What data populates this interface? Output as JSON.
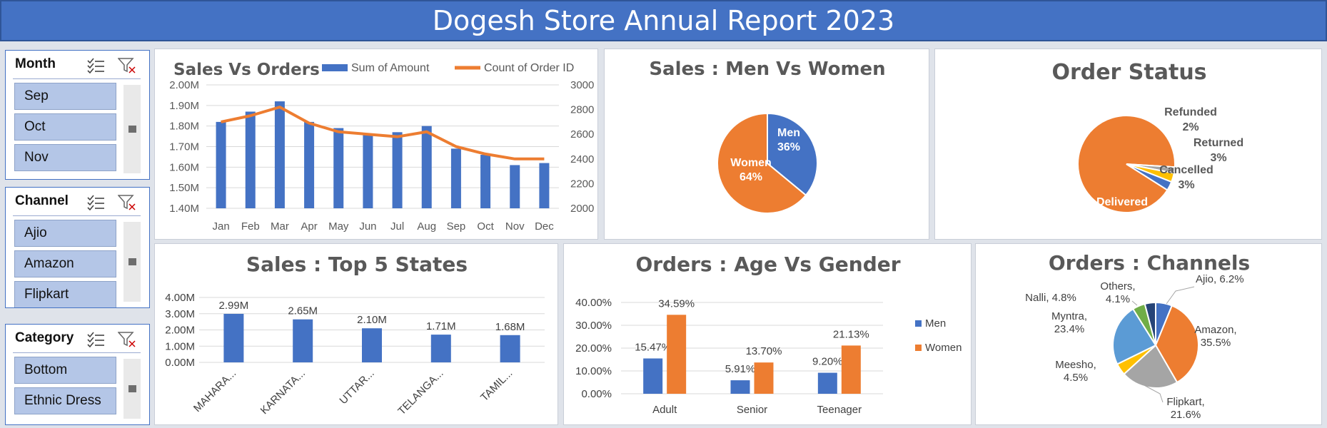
{
  "title": "Dogesh Store Annual Report 2023",
  "colors": {
    "blue": "#4472c4",
    "orange": "#ed7d31",
    "gray": "#a5a5a5",
    "yellow": "#ffc000",
    "light_blue": "#5b9bd5",
    "green": "#70ad47",
    "navy": "#264478"
  },
  "slicers": [
    {
      "title": "Month",
      "items": [
        "Sep",
        "Oct",
        "Nov"
      ],
      "icons": [
        "multi-select-icon",
        "clear-filter-icon"
      ]
    },
    {
      "title": "Channel",
      "items": [
        "Ajio",
        "Amazon",
        "Flipkart"
      ],
      "icons": [
        "multi-select-icon",
        "clear-filter-icon"
      ]
    },
    {
      "title": "Category",
      "items": [
        "Bottom",
        "Ethnic Dress"
      ],
      "icons": [
        "multi-select-icon",
        "clear-filter-icon"
      ]
    }
  ],
  "chart_data": [
    {
      "id": "sales-vs-orders",
      "type": "bar+line",
      "title": "Sales Vs Orders",
      "categories": [
        "Jan",
        "Feb",
        "Mar",
        "Apr",
        "May",
        "Jun",
        "Jul",
        "Aug",
        "Sep",
        "Oct",
        "Nov",
        "Dec"
      ],
      "series": [
        {
          "name": "Sum of Amount",
          "type": "bar",
          "axis": "left",
          "values": [
            1.82,
            1.87,
            1.92,
            1.82,
            1.79,
            1.76,
            1.77,
            1.8,
            1.69,
            1.66,
            1.61,
            1.62
          ]
        },
        {
          "name": "Count of Order ID",
          "type": "line",
          "axis": "right",
          "values": [
            2700,
            2750,
            2820,
            2690,
            2620,
            2600,
            2580,
            2620,
            2500,
            2440,
            2400,
            2400
          ]
        }
      ],
      "y_left": {
        "min": 1.4,
        "max": 2.0,
        "step": 0.1,
        "ticks": [
          "1.40M",
          "1.50M",
          "1.60M",
          "1.70M",
          "1.80M",
          "1.90M",
          "2.00M"
        ]
      },
      "y_right": {
        "min": 2000,
        "max": 3000,
        "step": 200,
        "ticks": [
          "2000",
          "2200",
          "2400",
          "2600",
          "2800",
          "3000"
        ]
      },
      "legend": "top"
    },
    {
      "id": "sales-men-women",
      "type": "pie",
      "title": "Sales : Men Vs Women",
      "slices": [
        {
          "label": "Men",
          "value": 36,
          "display": "36%"
        },
        {
          "label": "Women",
          "value": 64,
          "display": "64%"
        }
      ]
    },
    {
      "id": "order-status",
      "type": "pie",
      "title": "Order Status",
      "slices": [
        {
          "label": "Delivered",
          "value": 92,
          "display": ""
        },
        {
          "label": "Refunded",
          "value": 2,
          "display": "2%"
        },
        {
          "label": "Returned",
          "value": 3,
          "display": "3%"
        },
        {
          "label": "Cancelled",
          "value": 3,
          "display": "3%"
        }
      ]
    },
    {
      "id": "top-5-states",
      "type": "bar",
      "title": "Sales : Top 5 States",
      "categories": [
        "MAHARA...",
        "KARNATA...",
        "UTTAR...",
        "TELANGA...",
        "TAMIL..."
      ],
      "values": [
        2.99,
        2.65,
        2.1,
        1.71,
        1.68
      ],
      "data_labels": [
        "2.99M",
        "2.65M",
        "2.10M",
        "1.71M",
        "1.68M"
      ],
      "ylim": [
        0,
        4
      ],
      "ticks": [
        "0.00M",
        "1.00M",
        "2.00M",
        "3.00M",
        "4.00M"
      ]
    },
    {
      "id": "age-vs-gender",
      "type": "bar",
      "title": "Orders : Age Vs Gender",
      "categories": [
        "Adult",
        "Senior",
        "Teenager"
      ],
      "series": [
        {
          "name": "Men",
          "values": [
            15.47,
            5.91,
            9.2
          ],
          "labels": [
            "15.47%",
            "5.91%",
            "9.20%"
          ]
        },
        {
          "name": "Women",
          "values": [
            34.59,
            13.7,
            21.13
          ],
          "labels": [
            "34.59%",
            "13.70%",
            "21.13%"
          ]
        }
      ],
      "ylim": [
        0,
        40
      ],
      "ticks": [
        "0.00%",
        "10.00%",
        "20.00%",
        "30.00%",
        "40.00%"
      ],
      "legend": "right"
    },
    {
      "id": "orders-channels",
      "type": "pie",
      "title": "Orders : Channels",
      "slices": [
        {
          "label": "Ajio, 6.2%",
          "value": 6.2
        },
        {
          "label": "Amazon, 35.5%",
          "value": 35.5
        },
        {
          "label": "Flipkart, 21.6%",
          "value": 21.6
        },
        {
          "label": "Meesho, 4.5%",
          "value": 4.5
        },
        {
          "label": "Myntra, 23.4%",
          "value": 23.4
        },
        {
          "label": "Nalli, 4.8%",
          "value": 4.8
        },
        {
          "label": "Others, 4.1%",
          "value": 4.1
        }
      ]
    }
  ]
}
